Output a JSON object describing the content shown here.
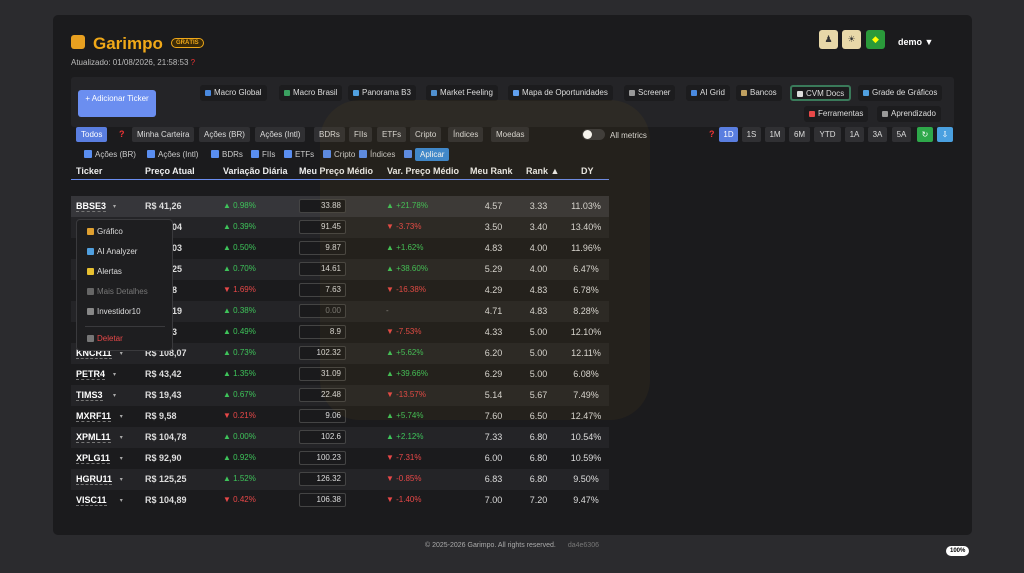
{
  "header": {
    "brand": "Garimpo",
    "badge": "GRÁTIS",
    "updated": "Atualizado: 01/08/2026, 21:58:53",
    "updated_mark": "?",
    "user": "demo ▼"
  },
  "add_button": "+ Adicionar Ticker",
  "nav": [
    "Macro Global",
    "Macro Brasil",
    "Panorama B3",
    "Market Feeling",
    "Mapa de Oportunidades",
    "Screener",
    "AI Grid",
    "Bancos",
    "CVM Docs",
    "Grade de Gráficos",
    "Ferramentas",
    "Aprendizado"
  ],
  "filters": [
    "Todos",
    "Minha Carteira",
    "Ações (BR)",
    "Ações (Intl)",
    "BDRs",
    "FIIs",
    "ETFs",
    "Cripto",
    "Índices",
    "Moedas"
  ],
  "filter_mark": "?",
  "all_metrics": "All metrics",
  "periods": [
    "1D",
    "1S",
    "1M",
    "6M",
    "YTD",
    "1A",
    "3A",
    "5A"
  ],
  "checkboxes": [
    "Ações (BR)",
    "Ações (Intl)",
    "BDRs",
    "FIIs",
    "ETFs",
    "Cripto",
    "Índices",
    "Moedas"
  ],
  "apply": "Aplicar",
  "columns": [
    "Ticker",
    "Preço Atual",
    "Variação Diária",
    "Meu Preço Médio",
    "Var. Preço Médio",
    "Meu Rank",
    "Rank ▲",
    "DY"
  ],
  "rows": [
    {
      "t": "BBSE3",
      "p": "R$ 41,26",
      "v": "▲ 0.98%",
      "m": "33.88",
      "vp": "▲ +21.78%",
      "mr": "4.57",
      "r": "3.33",
      "dy": "11.03%"
    },
    {
      "t": "",
      "p": "04",
      "v": "▲ 0.39%",
      "m": "91.45",
      "vp": "▼ -3.73%",
      "mr": "3.50",
      "r": "3.40",
      "dy": "13.40%"
    },
    {
      "t": "",
      "p": "03",
      "v": "▲ 0.50%",
      "m": "9.87",
      "vp": "▲ +1.62%",
      "mr": "4.83",
      "r": "4.00",
      "dy": "11.96%"
    },
    {
      "t": "",
      "p": "25",
      "v": "▲ 0.70%",
      "m": "14.61",
      "vp": "▲ +38.60%",
      "mr": "5.29",
      "r": "4.00",
      "dy": "6.47%"
    },
    {
      "t": "",
      "p": "8",
      "v": "▼ 1.69%",
      "m": "7.63",
      "vp": "▼ -16.38%",
      "mr": "4.29",
      "r": "4.83",
      "dy": "6.78%"
    },
    {
      "t": "",
      "p": "19",
      "v": "▲ 0.38%",
      "m": "0.00",
      "vp": "-",
      "mr": "4.71",
      "r": "4.83",
      "dy": "8.28%"
    },
    {
      "t": "",
      "p": "3",
      "v": "▲ 0.49%",
      "m": "8.9",
      "vp": "▼ -7.53%",
      "mr": "4.33",
      "r": "5.00",
      "dy": "12.10%"
    },
    {
      "t": "KNCR11",
      "p": "R$ 108,07",
      "v": "▲ 0.73%",
      "m": "102.32",
      "vp": "▲ +5.62%",
      "mr": "6.20",
      "r": "5.00",
      "dy": "12.11%"
    },
    {
      "t": "PETR4",
      "p": "R$ 43,42",
      "v": "▲ 1.35%",
      "m": "31.09",
      "vp": "▲ +39.66%",
      "mr": "6.29",
      "r": "5.00",
      "dy": "6.08%"
    },
    {
      "t": "TIMS3",
      "p": "R$ 19,43",
      "v": "▲ 0.67%",
      "m": "22.48",
      "vp": "▼ -13.57%",
      "mr": "5.14",
      "r": "5.67",
      "dy": "7.49%"
    },
    {
      "t": "MXRF11",
      "p": "R$ 9,58",
      "v": "▼ 0.21%",
      "m": "9.06",
      "vp": "▲ +5.74%",
      "mr": "7.60",
      "r": "6.50",
      "dy": "12.47%"
    },
    {
      "t": "XPML11",
      "p": "R$ 104,78",
      "v": "▲ 0.00%",
      "m": "102.6",
      "vp": "▲ +2.12%",
      "mr": "7.33",
      "r": "6.80",
      "dy": "10.54%"
    },
    {
      "t": "XPLG11",
      "p": "R$ 92,90",
      "v": "▲ 0.92%",
      "m": "100.23",
      "vp": "▼ -7.31%",
      "mr": "6.00",
      "r": "6.80",
      "dy": "10.59%"
    },
    {
      "t": "HGRU11",
      "p": "R$ 125,25",
      "v": "▲ 1.52%",
      "m": "126.32",
      "vp": "▼ -0.85%",
      "mr": "6.83",
      "r": "6.80",
      "dy": "9.50%"
    },
    {
      "t": "VISC11",
      "p": "R$ 104,89",
      "v": "▼ 0.42%",
      "m": "106.38",
      "vp": "▼ -1.40%",
      "mr": "7.00",
      "r": "7.20",
      "dy": "9.47%"
    }
  ],
  "menu": [
    "Gráfico",
    "AI Analyzer",
    "Alertas",
    "Mais Detalhes",
    "Investidor10",
    "Deletar"
  ],
  "footer": {
    "text": "© 2025-2026 Garimpo. All rights reserved.",
    "hash": "da4e6306"
  },
  "badge_pct": "100%"
}
